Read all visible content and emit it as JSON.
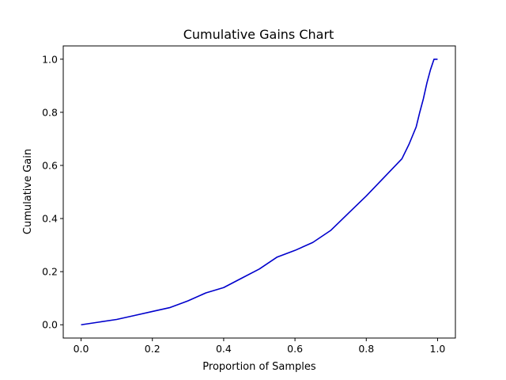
{
  "chart_data": {
    "type": "line",
    "title": "Cumulative Gains Chart",
    "xlabel": "Proportion of Samples",
    "ylabel": "Cumulative Gain",
    "xlim": [
      -0.05,
      1.05
    ],
    "ylim": [
      -0.05,
      1.05
    ],
    "xticks": [
      0.0,
      0.2,
      0.4,
      0.6,
      0.8,
      1.0
    ],
    "yticks": [
      0.0,
      0.2,
      0.4,
      0.6,
      0.8,
      1.0
    ],
    "xtick_labels": [
      "0.0",
      "0.2",
      "0.4",
      "0.6",
      "0.8",
      "1.0"
    ],
    "ytick_labels": [
      "0.0",
      "0.2",
      "0.4",
      "0.6",
      "0.8",
      "1.0"
    ],
    "grid": false,
    "series": [
      {
        "color": "#0000cc",
        "x": [
          0.0,
          0.05,
          0.1,
          0.15,
          0.2,
          0.25,
          0.3,
          0.35,
          0.4,
          0.45,
          0.5,
          0.55,
          0.6,
          0.65,
          0.7,
          0.75,
          0.8,
          0.85,
          0.9,
          0.92,
          0.94,
          0.95,
          0.96,
          0.97,
          0.98,
          0.99,
          1.0
        ],
        "y": [
          0.0,
          0.01,
          0.02,
          0.035,
          0.05,
          0.065,
          0.09,
          0.12,
          0.14,
          0.175,
          0.21,
          0.255,
          0.28,
          0.31,
          0.355,
          0.42,
          0.485,
          0.555,
          0.625,
          0.68,
          0.745,
          0.8,
          0.85,
          0.91,
          0.96,
          1.0,
          1.0
        ]
      }
    ]
  }
}
